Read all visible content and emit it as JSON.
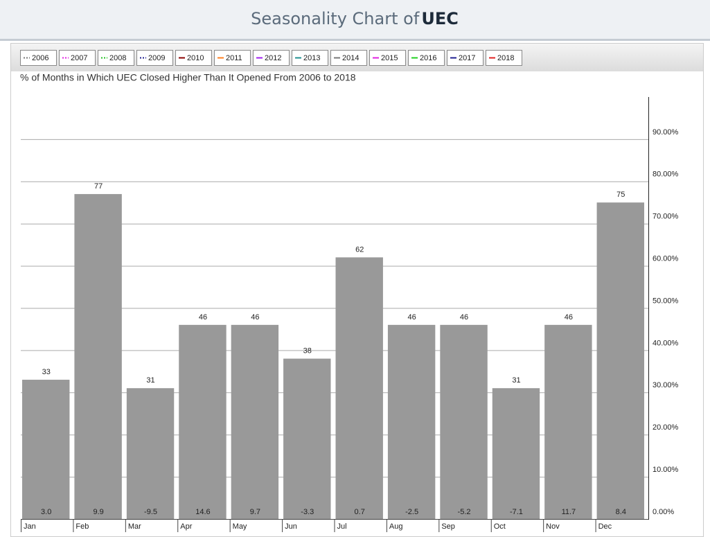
{
  "header": {
    "title": "Seasonality Chart of",
    "symbol": "UEC"
  },
  "chart_data": {
    "type": "bar",
    "title": "% of Months in Which UEC Closed Higher Than It Opened From 2006 to 2018",
    "legend": [
      {
        "name": "2006",
        "color": "#777777",
        "dotted": true
      },
      {
        "name": "2007",
        "color": "#e020e0",
        "dotted": true
      },
      {
        "name": "2008",
        "color": "#20c020",
        "dotted": true
      },
      {
        "name": "2009",
        "color": "#202090",
        "dotted": true
      },
      {
        "name": "2010",
        "color": "#8b0000",
        "dotted": false
      },
      {
        "name": "2011",
        "color": "#ff7f20",
        "dotted": false
      },
      {
        "name": "2012",
        "color": "#a020f0",
        "dotted": false
      },
      {
        "name": "2013",
        "color": "#209090",
        "dotted": false
      },
      {
        "name": "2014",
        "color": "#777777",
        "dotted": false
      },
      {
        "name": "2015",
        "color": "#e020e0",
        "dotted": false
      },
      {
        "name": "2016",
        "color": "#20d020",
        "dotted": false
      },
      {
        "name": "2017",
        "color": "#202090",
        "dotted": false
      },
      {
        "name": "2018",
        "color": "#e02020",
        "dotted": false
      }
    ],
    "categories": [
      "Jan",
      "Feb",
      "Mar",
      "Apr",
      "May",
      "Jun",
      "Jul",
      "Aug",
      "Sep",
      "Oct",
      "Nov",
      "Dec"
    ],
    "values": [
      33,
      77,
      31,
      46,
      46,
      38,
      62,
      46,
      46,
      31,
      46,
      75
    ],
    "bottom_labels": [
      "3.0",
      "9.9",
      "-9.5",
      "14.6",
      "9.7",
      "-3.3",
      "0.7",
      "-2.5",
      "-5.2",
      "-7.1",
      "11.7",
      "8.4"
    ],
    "color": "#999999",
    "ylim": [
      0,
      100
    ],
    "yticks": [
      {
        "value": 0,
        "label": "0.00%"
      },
      {
        "value": 10,
        "label": "10.00%"
      },
      {
        "value": 20,
        "label": "20.00%"
      },
      {
        "value": 30,
        "label": "30.00%"
      },
      {
        "value": 40,
        "label": "40.00%"
      },
      {
        "value": 50,
        "label": "50.00%"
      },
      {
        "value": 60,
        "label": "60.00%"
      },
      {
        "value": 70,
        "label": "70.00%"
      },
      {
        "value": 80,
        "label": "80.00%"
      },
      {
        "value": 90,
        "label": "90.00%"
      }
    ],
    "grid": true
  }
}
